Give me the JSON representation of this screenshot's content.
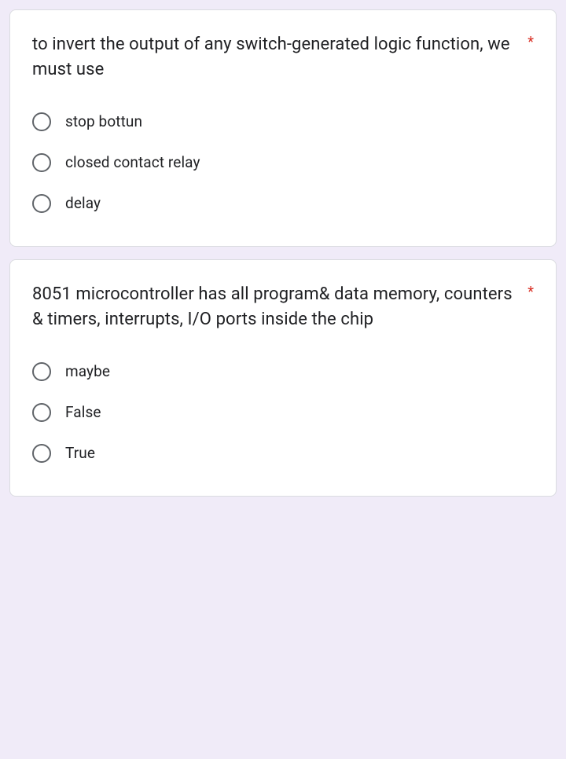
{
  "questions": [
    {
      "text": "to invert the output of any switch-generated logic function, we must use",
      "required_marker": "*",
      "options": [
        {
          "label": "stop bottun"
        },
        {
          "label": "closed contact relay"
        },
        {
          "label": "delay"
        }
      ]
    },
    {
      "text": "8051 microcontroller has all program& data memory, counters & timers, interrupts, I/O ports inside the chip",
      "required_marker": "*",
      "options": [
        {
          "label": "maybe"
        },
        {
          "label": "False"
        },
        {
          "label": "True"
        }
      ]
    }
  ],
  "colors": {
    "background": "#f0ebf8",
    "card_bg": "#ffffff",
    "card_border": "#dadce0",
    "text": "#202124",
    "radio_border": "#5f6368",
    "required": "#d93025"
  }
}
